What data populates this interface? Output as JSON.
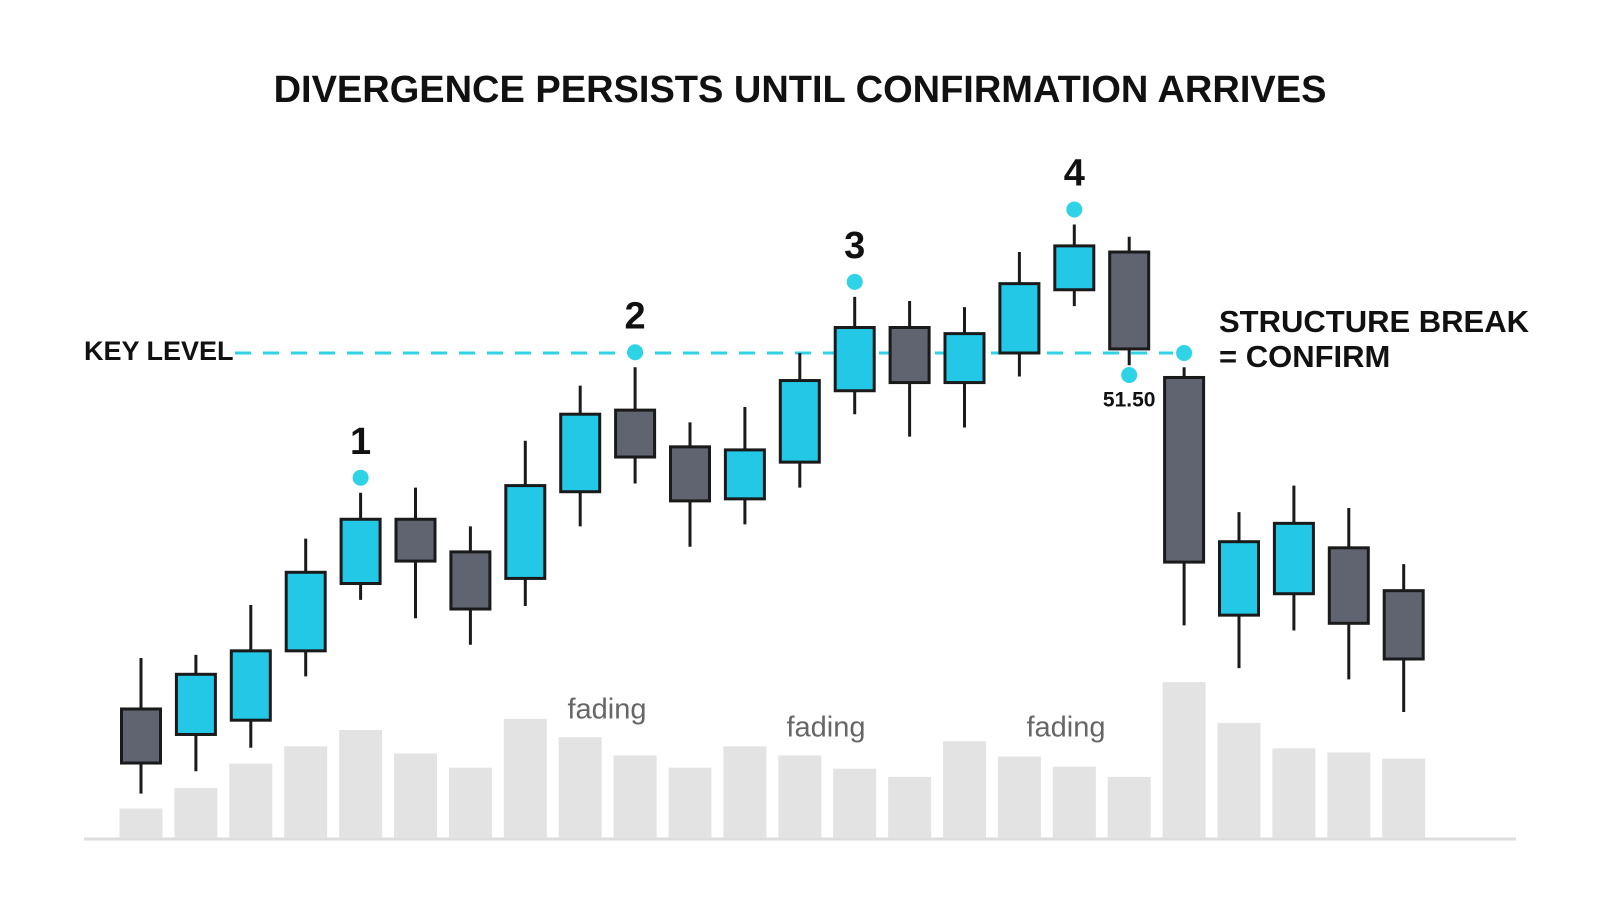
{
  "chart_data": {
    "type": "candlestick",
    "title": "DIVERGENCE PERSISTS UNTIL CONFIRMATION ARRIVES",
    "open": [
      48.01,
      47.76,
      47.9,
      48.58,
      49.24,
      49.87,
      49.55,
      49.29,
      50.14,
      50.94,
      50.58,
      50.07,
      50.43,
      51.13,
      51.75,
      51.21,
      51.5,
      52.12,
      52.49,
      51.26,
      48.93,
      49.14,
      49.59,
      49.17
    ],
    "high": [
      48.51,
      48.54,
      49.03,
      49.68,
      50.13,
      50.18,
      49.8,
      50.64,
      51.18,
      51.36,
      50.82,
      50.97,
      51.5,
      52.05,
      52.01,
      51.95,
      52.49,
      52.76,
      52.64,
      51.36,
      49.94,
      50.2,
      49.98,
      49.43
    ],
    "low": [
      47.18,
      47.4,
      47.63,
      48.33,
      49.08,
      48.9,
      48.64,
      49.02,
      49.8,
      50.22,
      49.6,
      49.82,
      50.18,
      50.9,
      50.68,
      50.77,
      51.27,
      51.96,
      51.38,
      48.83,
      48.41,
      48.78,
      48.3,
      47.98
    ],
    "close": [
      47.48,
      48.35,
      48.58,
      49.35,
      49.87,
      49.46,
      48.99,
      50.2,
      50.9,
      50.48,
      50.05,
      50.55,
      51.23,
      51.75,
      51.21,
      51.69,
      52.18,
      52.55,
      51.54,
      49.45,
      49.65,
      49.83,
      48.85,
      48.5
    ],
    "volume": [
      29,
      49,
      73,
      90,
      106,
      83,
      69,
      117,
      99,
      81,
      69,
      90,
      81,
      68,
      60,
      95,
      80,
      70,
      60,
      153,
      113,
      88,
      84,
      78
    ],
    "pivot_labels": [
      null,
      null,
      null,
      null,
      "1",
      null,
      null,
      null,
      null,
      "2",
      null,
      null,
      null,
      "3",
      null,
      null,
      null,
      "4",
      null,
      null,
      null,
      null,
      null,
      null
    ],
    "up_color": "#22c8e6",
    "down_color": "#5f6470",
    "volume_color": "#e3e3e3",
    "ylim": [
      47,
      53.5
    ],
    "volume_lim": [
      0,
      160
    ],
    "key_level": {
      "value": 51.5,
      "label": "51.50"
    },
    "key_level_name": "KEY LEVEL",
    "key_level_color": "#2fd3e6",
    "break_text": [
      "STRUCTURE BREAK",
      "= CONFIRM"
    ],
    "annotations": [
      "fading",
      "fading",
      "fading"
    ]
  }
}
